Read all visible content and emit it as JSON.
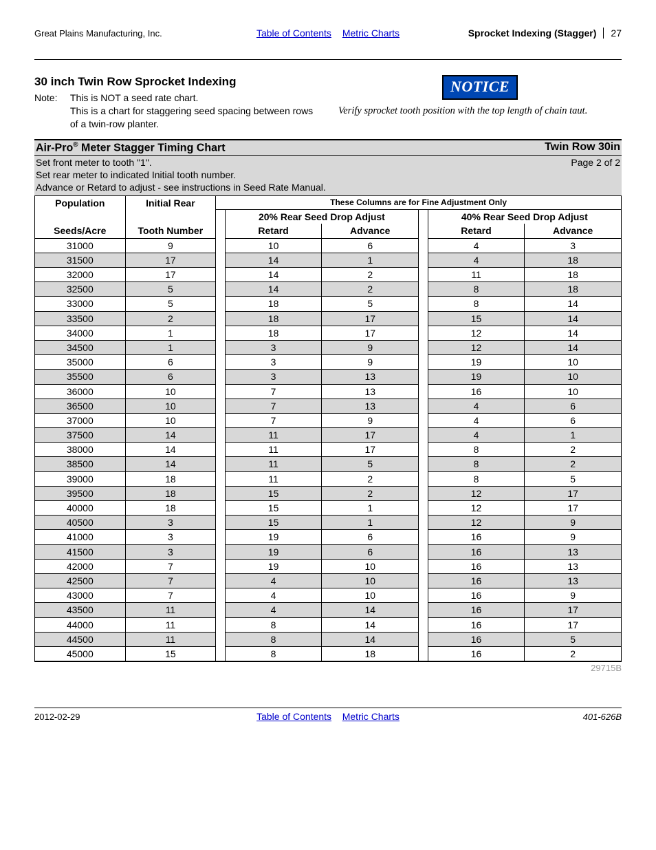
{
  "header": {
    "company": "Great Plains Manufacturing, Inc.",
    "link_toc": "Table of Contents",
    "link_metric": "Metric Charts",
    "section_title": "Sprocket Indexing (Stagger)",
    "page_num": "27"
  },
  "intro": {
    "heading": "30 inch Twin Row Sprocket Indexing",
    "note_label": "Note:",
    "note_line1": "This is NOT a seed rate chart.",
    "note_line2": "This is a chart for staggering seed spacing between rows of a twin-row planter.",
    "notice_label": "NOTICE",
    "verify": "Verify sprocket tooth position with the top length of chain taut."
  },
  "chart": {
    "title_prefix": "Air-Pro",
    "title_suffix": " Meter Stagger Timing Chart",
    "title_right": "Twin Row 30in",
    "instr1": "Set front meter to tooth \"1\".",
    "page_of": "Page 2 of 2",
    "instr2": "Set rear meter to indicated Initial tooth number.",
    "instr3": "Advance or Retard to adjust - see instructions in Seed Rate Manual.",
    "fine_adj": "These Columns are for Fine Adjustment Only",
    "h_pop1": "Population",
    "h_pop2": "Seeds/Acre",
    "h_init1": "Initial Rear",
    "h_init2": "Tooth Number",
    "h_20": "20% Rear Seed Drop Adjust",
    "h_40": "40% Rear Seed Drop Adjust",
    "h_retard": "Retard",
    "h_advance": "Advance",
    "catalog": "29715B",
    "rows": [
      {
        "pop": "31000",
        "init": "9",
        "r20": "10",
        "a20": "6",
        "r40": "4",
        "a40": "3"
      },
      {
        "pop": "31500",
        "init": "17",
        "r20": "14",
        "a20": "1",
        "r40": "4",
        "a40": "18"
      },
      {
        "pop": "32000",
        "init": "17",
        "r20": "14",
        "a20": "2",
        "r40": "11",
        "a40": "18"
      },
      {
        "pop": "32500",
        "init": "5",
        "r20": "14",
        "a20": "2",
        "r40": "8",
        "a40": "18"
      },
      {
        "pop": "33000",
        "init": "5",
        "r20": "18",
        "a20": "5",
        "r40": "8",
        "a40": "14"
      },
      {
        "pop": "33500",
        "init": "2",
        "r20": "18",
        "a20": "17",
        "r40": "15",
        "a40": "14"
      },
      {
        "pop": "34000",
        "init": "1",
        "r20": "18",
        "a20": "17",
        "r40": "12",
        "a40": "14"
      },
      {
        "pop": "34500",
        "init": "1",
        "r20": "3",
        "a20": "9",
        "r40": "12",
        "a40": "14"
      },
      {
        "pop": "35000",
        "init": "6",
        "r20": "3",
        "a20": "9",
        "r40": "19",
        "a40": "10"
      },
      {
        "pop": "35500",
        "init": "6",
        "r20": "3",
        "a20": "13",
        "r40": "19",
        "a40": "10"
      },
      {
        "pop": "36000",
        "init": "10",
        "r20": "7",
        "a20": "13",
        "r40": "16",
        "a40": "10"
      },
      {
        "pop": "36500",
        "init": "10",
        "r20": "7",
        "a20": "13",
        "r40": "4",
        "a40": "6"
      },
      {
        "pop": "37000",
        "init": "10",
        "r20": "7",
        "a20": "9",
        "r40": "4",
        "a40": "6"
      },
      {
        "pop": "37500",
        "init": "14",
        "r20": "11",
        "a20": "17",
        "r40": "4",
        "a40": "1"
      },
      {
        "pop": "38000",
        "init": "14",
        "r20": "11",
        "a20": "17",
        "r40": "8",
        "a40": "2"
      },
      {
        "pop": "38500",
        "init": "14",
        "r20": "11",
        "a20": "5",
        "r40": "8",
        "a40": "2"
      },
      {
        "pop": "39000",
        "init": "18",
        "r20": "11",
        "a20": "2",
        "r40": "8",
        "a40": "5"
      },
      {
        "pop": "39500",
        "init": "18",
        "r20": "15",
        "a20": "2",
        "r40": "12",
        "a40": "17"
      },
      {
        "pop": "40000",
        "init": "18",
        "r20": "15",
        "a20": "1",
        "r40": "12",
        "a40": "17"
      },
      {
        "pop": "40500",
        "init": "3",
        "r20": "15",
        "a20": "1",
        "r40": "12",
        "a40": "9"
      },
      {
        "pop": "41000",
        "init": "3",
        "r20": "19",
        "a20": "6",
        "r40": "16",
        "a40": "9"
      },
      {
        "pop": "41500",
        "init": "3",
        "r20": "19",
        "a20": "6",
        "r40": "16",
        "a40": "13"
      },
      {
        "pop": "42000",
        "init": "7",
        "r20": "19",
        "a20": "10",
        "r40": "16",
        "a40": "13"
      },
      {
        "pop": "42500",
        "init": "7",
        "r20": "4",
        "a20": "10",
        "r40": "16",
        "a40": "13"
      },
      {
        "pop": "43000",
        "init": "7",
        "r20": "4",
        "a20": "10",
        "r40": "16",
        "a40": "9"
      },
      {
        "pop": "43500",
        "init": "11",
        "r20": "4",
        "a20": "14",
        "r40": "16",
        "a40": "17"
      },
      {
        "pop": "44000",
        "init": "11",
        "r20": "8",
        "a20": "14",
        "r40": "16",
        "a40": "17"
      },
      {
        "pop": "44500",
        "init": "11",
        "r20": "8",
        "a20": "14",
        "r40": "16",
        "a40": "5"
      },
      {
        "pop": "45000",
        "init": "15",
        "r20": "8",
        "a20": "18",
        "r40": "16",
        "a40": "2"
      }
    ]
  },
  "footer": {
    "date": "2012-02-29",
    "link_toc": "Table of Contents",
    "link_metric": "Metric Charts",
    "doc": "401-626B"
  }
}
